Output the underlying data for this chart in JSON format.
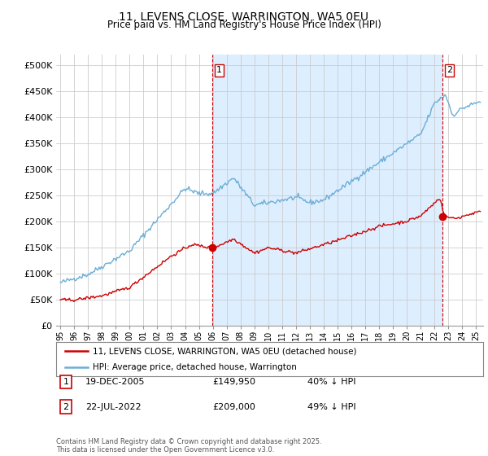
{
  "title": "11, LEVENS CLOSE, WARRINGTON, WA5 0EU",
  "subtitle": "Price paid vs. HM Land Registry's House Price Index (HPI)",
  "ylabel_ticks": [
    "£0",
    "£50K",
    "£100K",
    "£150K",
    "£200K",
    "£250K",
    "£300K",
    "£350K",
    "£400K",
    "£450K",
    "£500K"
  ],
  "ytick_values": [
    0,
    50000,
    100000,
    150000,
    200000,
    250000,
    300000,
    350000,
    400000,
    450000,
    500000
  ],
  "ylim": [
    0,
    520000
  ],
  "xlim_start": 1994.7,
  "xlim_end": 2025.5,
  "hpi_color": "#6baed6",
  "price_color": "#cc0000",
  "vline_color": "#cc0000",
  "shade_color": "#ddeeff",
  "background_color": "#ffffff",
  "grid_color": "#cccccc",
  "legend_label_red": "11, LEVENS CLOSE, WARRINGTON, WA5 0EU (detached house)",
  "legend_label_blue": "HPI: Average price, detached house, Warrington",
  "transaction1_label": "1",
  "transaction1_date": "19-DEC-2005",
  "transaction1_price": "£149,950",
  "transaction1_hpi": "40% ↓ HPI",
  "transaction1_x": 2005.97,
  "transaction1_y": 149950,
  "transaction2_label": "2",
  "transaction2_date": "22-JUL-2022",
  "transaction2_price": "£209,000",
  "transaction2_hpi": "49% ↓ HPI",
  "transaction2_x": 2022.55,
  "transaction2_y": 209000,
  "footer": "Contains HM Land Registry data © Crown copyright and database right 2025.\nThis data is licensed under the Open Government Licence v3.0.",
  "xtick_years": [
    1995,
    1996,
    1997,
    1998,
    1999,
    2000,
    2001,
    2002,
    2003,
    2004,
    2005,
    2006,
    2007,
    2008,
    2009,
    2010,
    2011,
    2012,
    2013,
    2014,
    2015,
    2016,
    2017,
    2018,
    2019,
    2020,
    2021,
    2022,
    2023,
    2024,
    2025
  ]
}
